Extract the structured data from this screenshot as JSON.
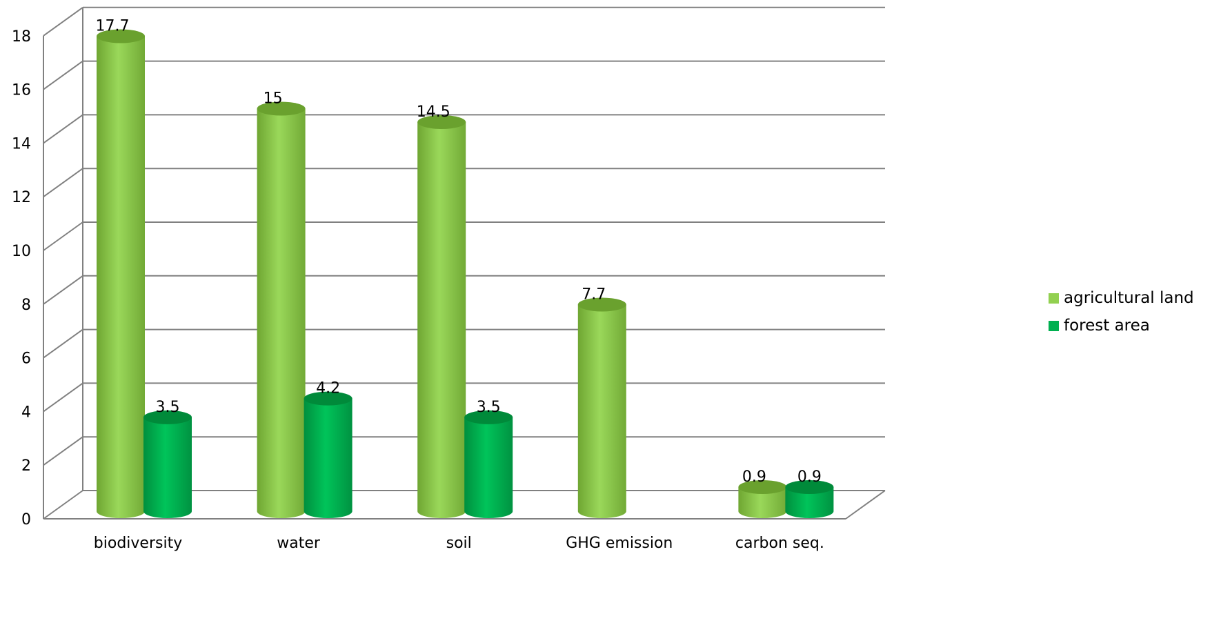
{
  "chart_data": {
    "type": "bar",
    "subtype": "3d-cylinder",
    "categories": [
      "biodiversity",
      "water",
      "soil",
      "GHG emission",
      "carbon seq."
    ],
    "series": [
      {
        "name": "agricultural land",
        "color": "#92d050",
        "dark": "#6aa12e",
        "values": [
          17.7,
          15,
          14.5,
          7.7,
          0.9
        ]
      },
      {
        "name": "forest area",
        "color": "#00b050",
        "dark": "#008a3a",
        "values": [
          3.5,
          4.2,
          3.5,
          null,
          0.9
        ]
      }
    ],
    "data_labels": {
      "agricultural land": [
        "17.7",
        "15",
        "14.5",
        "7.7",
        "0.9"
      ],
      "forest area": [
        "3.5",
        "4.2",
        "3.5",
        "",
        "0.9"
      ]
    },
    "y_ticks": [
      "0",
      "2",
      "4",
      "6",
      "8",
      "10",
      "12",
      "14",
      "16",
      "18"
    ],
    "ylim": [
      0,
      18
    ],
    "grid": true,
    "legend_position": "right",
    "gridline_color": "#808080"
  }
}
